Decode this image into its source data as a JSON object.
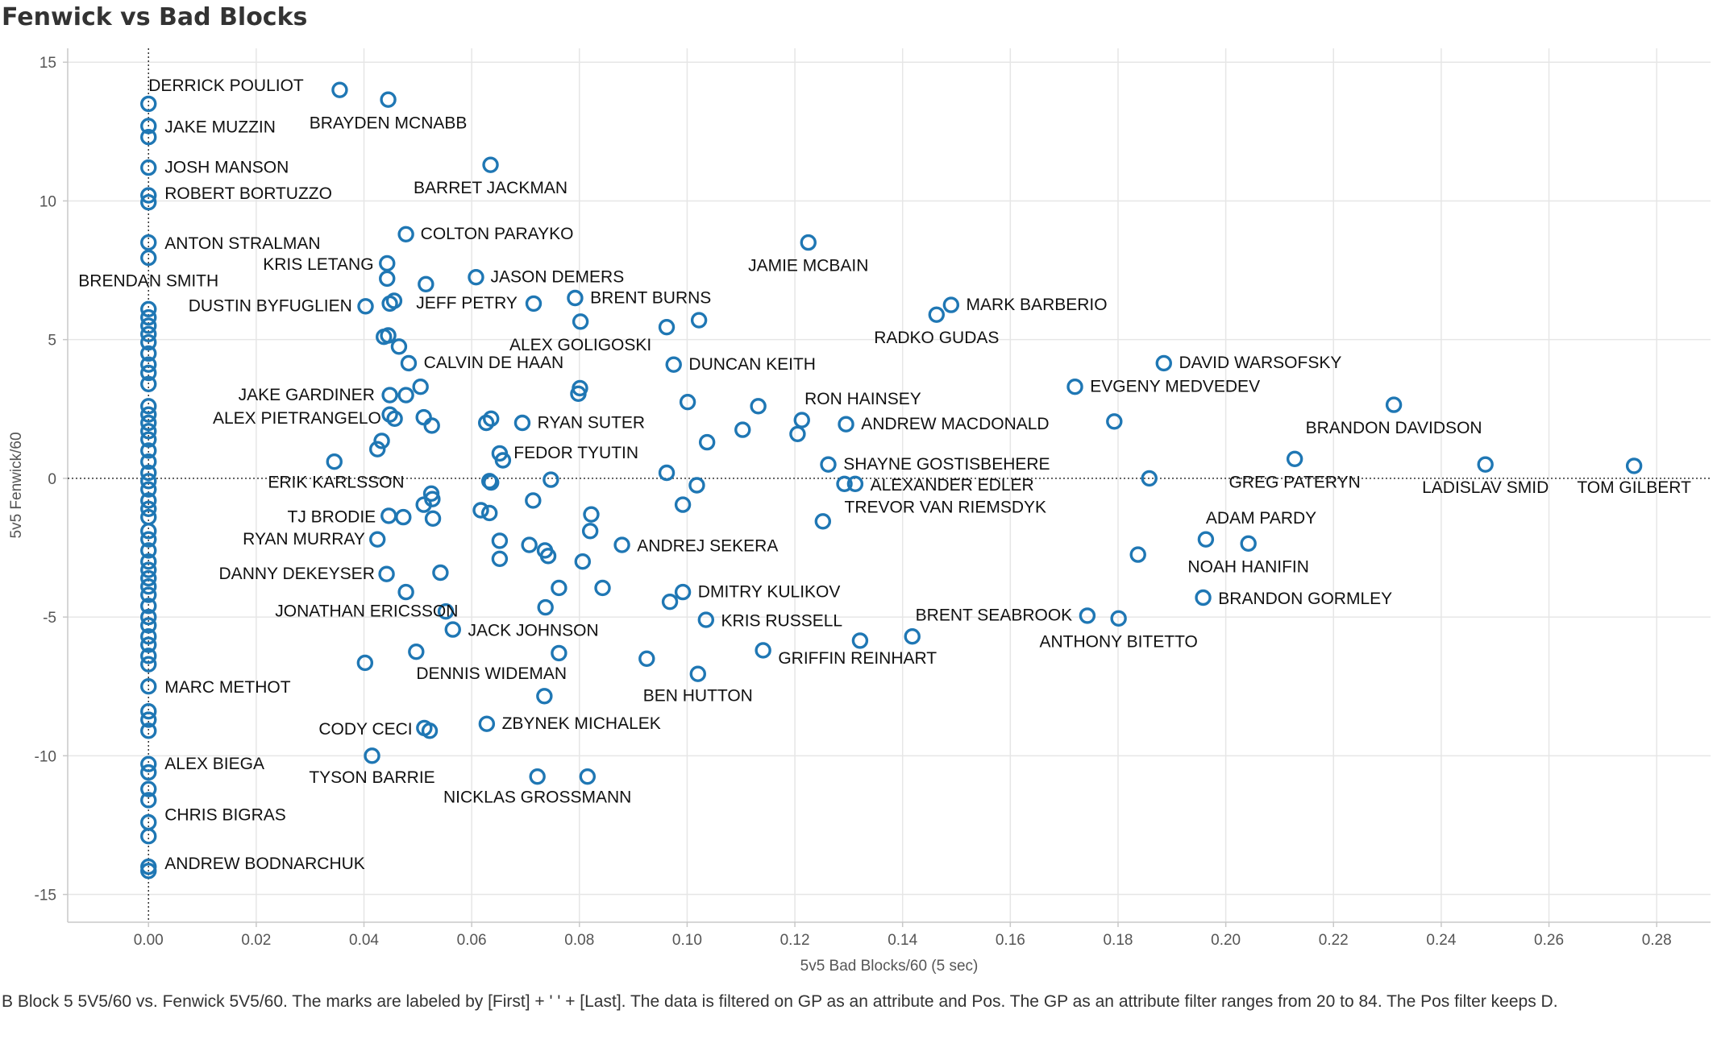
{
  "title": "Fenwick vs Bad Blocks",
  "caption": "B Block 5 5V5/60 vs. Fenwick 5V5/60.  The marks are labeled by [First] + ' ' + [Last]. The data is filtered on GP as an attribute and Pos. The GP as an attribute filter ranges from 20 to 84. The Pos filter keeps D.",
  "colors": {
    "mark": "#1f77b4",
    "grid": "#e6e6e6",
    "axis": "#c8c8c8",
    "zero_line": "#333333"
  },
  "chart_data": {
    "type": "scatter",
    "xlabel": "5v5 Bad Blocks/60 (5 sec)",
    "ylabel": "5v5 Fenwick/60",
    "xlim": [
      -0.015,
      0.29
    ],
    "ylim": [
      -16.0,
      15.5
    ],
    "x_ticks": [
      0.0,
      0.02,
      0.04,
      0.06,
      0.08,
      0.1,
      0.12,
      0.14,
      0.16,
      0.18,
      0.2,
      0.22,
      0.24,
      0.26,
      0.28
    ],
    "x_tick_labels": [
      "0.00",
      "0.02",
      "0.04",
      "0.06",
      "0.08",
      "0.10",
      "0.12",
      "0.14",
      "0.16",
      "0.18",
      "0.20",
      "0.22",
      "0.24",
      "0.26",
      "0.28"
    ],
    "y_ticks": [
      15,
      10,
      5,
      0,
      -5,
      -10,
      -15
    ],
    "y_tick_labels": [
      "15",
      "10",
      "5",
      "0",
      "-5",
      "-10",
      "-15"
    ],
    "grid": true,
    "zero_lines": true,
    "points": [
      {
        "x": 0.0,
        "y": 13.5
      },
      {
        "x": 0.0,
        "y": 12.7
      },
      {
        "x": 0.0,
        "y": 12.3
      },
      {
        "x": 0.0,
        "y": 11.2
      },
      {
        "x": 0.0,
        "y": 10.2
      },
      {
        "x": 0.0,
        "y": 9.95
      },
      {
        "x": 0.0,
        "y": 8.5
      },
      {
        "x": 0.0,
        "y": 7.95
      },
      {
        "x": 0.0,
        "y": 6.1
      },
      {
        "x": 0.0,
        "y": 5.8
      },
      {
        "x": 0.0,
        "y": 5.5
      },
      {
        "x": 0.0,
        "y": 5.2
      },
      {
        "x": 0.0,
        "y": 4.9
      },
      {
        "x": 0.0,
        "y": 4.5
      },
      {
        "x": 0.0,
        "y": 4.1
      },
      {
        "x": 0.0,
        "y": 3.8
      },
      {
        "x": 0.0,
        "y": 3.4
      },
      {
        "x": 0.0,
        "y": 2.6
      },
      {
        "x": 0.0,
        "y": 2.3
      },
      {
        "x": 0.0,
        "y": 2.0
      },
      {
        "x": 0.0,
        "y": 1.7
      },
      {
        "x": 0.0,
        "y": 1.4
      },
      {
        "x": 0.0,
        "y": 1.0
      },
      {
        "x": 0.0,
        "y": 0.6
      },
      {
        "x": 0.0,
        "y": 0.2
      },
      {
        "x": 0.0,
        "y": -0.1
      },
      {
        "x": 0.0,
        "y": -0.4
      },
      {
        "x": 0.0,
        "y": -0.8
      },
      {
        "x": 0.0,
        "y": -1.1
      },
      {
        "x": 0.0,
        "y": -1.4
      },
      {
        "x": 0.0,
        "y": -1.9
      },
      {
        "x": 0.0,
        "y": -2.2
      },
      {
        "x": 0.0,
        "y": -2.6
      },
      {
        "x": 0.0,
        "y": -3.0
      },
      {
        "x": 0.0,
        "y": -3.3
      },
      {
        "x": 0.0,
        "y": -3.6
      },
      {
        "x": 0.0,
        "y": -3.9
      },
      {
        "x": 0.0,
        "y": -4.2
      },
      {
        "x": 0.0,
        "y": -4.6
      },
      {
        "x": 0.0,
        "y": -5.0
      },
      {
        "x": 0.0,
        "y": -5.3
      },
      {
        "x": 0.0,
        "y": -5.7
      },
      {
        "x": 0.0,
        "y": -6.0
      },
      {
        "x": 0.0,
        "y": -6.4
      },
      {
        "x": 0.0,
        "y": -6.7
      },
      {
        "x": 0.0,
        "y": -7.5
      },
      {
        "x": 0.0,
        "y": -8.4
      },
      {
        "x": 0.0,
        "y": -8.7
      },
      {
        "x": 0.0,
        "y": -9.1
      },
      {
        "x": 0.0,
        "y": -10.3
      },
      {
        "x": 0.0,
        "y": -10.6
      },
      {
        "x": 0.0,
        "y": -11.2
      },
      {
        "x": 0.0,
        "y": -11.6
      },
      {
        "x": 0.0,
        "y": -12.4
      },
      {
        "x": 0.0,
        "y": -12.9
      },
      {
        "x": 0.0,
        "y": -14.0
      },
      {
        "x": 0.0,
        "y": -14.15
      },
      {
        "x": 0.0355,
        "y": 14.0
      },
      {
        "x": 0.0445,
        "y": 13.65
      },
      {
        "x": 0.0635,
        "y": 11.3
      },
      {
        "x": 0.0478,
        "y": 8.8
      },
      {
        "x": 0.1225,
        "y": 8.5
      },
      {
        "x": 0.0443,
        "y": 7.75
      },
      {
        "x": 0.0443,
        "y": 7.2
      },
      {
        "x": 0.0515,
        "y": 7.0
      },
      {
        "x": 0.0608,
        "y": 7.25
      },
      {
        "x": 0.0403,
        "y": 6.2
      },
      {
        "x": 0.0448,
        "y": 6.3
      },
      {
        "x": 0.0456,
        "y": 6.4
      },
      {
        "x": 0.0715,
        "y": 6.3
      },
      {
        "x": 0.0792,
        "y": 6.5
      },
      {
        "x": 0.149,
        "y": 6.25
      },
      {
        "x": 0.1463,
        "y": 5.9
      },
      {
        "x": 0.0802,
        "y": 5.65
      },
      {
        "x": 0.0962,
        "y": 5.45
      },
      {
        "x": 0.1022,
        "y": 5.7
      },
      {
        "x": 0.0437,
        "y": 5.1
      },
      {
        "x": 0.0445,
        "y": 5.15
      },
      {
        "x": 0.0465,
        "y": 4.75
      },
      {
        "x": 0.0483,
        "y": 4.15
      },
      {
        "x": 0.0975,
        "y": 4.1
      },
      {
        "x": 0.1885,
        "y": 4.15
      },
      {
        "x": 0.0505,
        "y": 3.3
      },
      {
        "x": 0.0448,
        "y": 3.0
      },
      {
        "x": 0.0478,
        "y": 3.0
      },
      {
        "x": 0.0801,
        "y": 3.25
      },
      {
        "x": 0.0798,
        "y": 3.05
      },
      {
        "x": 0.1001,
        "y": 2.75
      },
      {
        "x": 0.1132,
        "y": 2.6
      },
      {
        "x": 0.172,
        "y": 3.3
      },
      {
        "x": 0.2312,
        "y": 2.65
      },
      {
        "x": 0.0448,
        "y": 2.3
      },
      {
        "x": 0.0457,
        "y": 2.15
      },
      {
        "x": 0.0511,
        "y": 2.2
      },
      {
        "x": 0.0526,
        "y": 1.9
      },
      {
        "x": 0.0627,
        "y": 2.0
      },
      {
        "x": 0.0636,
        "y": 2.15
      },
      {
        "x": 0.0694,
        "y": 2.0
      },
      {
        "x": 0.1103,
        "y": 1.75
      },
      {
        "x": 0.1213,
        "y": 2.1
      },
      {
        "x": 0.1205,
        "y": 1.6
      },
      {
        "x": 0.1295,
        "y": 1.95
      },
      {
        "x": 0.1793,
        "y": 2.05
      },
      {
        "x": 0.0425,
        "y": 1.05
      },
      {
        "x": 0.0433,
        "y": 1.35
      },
      {
        "x": 0.0652,
        "y": 0.9
      },
      {
        "x": 0.0658,
        "y": 0.65
      },
      {
        "x": 0.1037,
        "y": 1.3
      },
      {
        "x": 0.0345,
        "y": 0.6
      },
      {
        "x": 0.1262,
        "y": 0.5
      },
      {
        "x": 0.2128,
        "y": 0.7
      },
      {
        "x": 0.2482,
        "y": 0.5
      },
      {
        "x": 0.2758,
        "y": 0.45
      },
      {
        "x": 0.0633,
        "y": -0.1
      },
      {
        "x": 0.0636,
        "y": -0.15
      },
      {
        "x": 0.0747,
        "y": -0.05
      },
      {
        "x": 0.0962,
        "y": 0.2
      },
      {
        "x": 0.1018,
        "y": -0.25
      },
      {
        "x": 0.1292,
        "y": -0.2
      },
      {
        "x": 0.1312,
        "y": -0.2
      },
      {
        "x": 0.1858,
        "y": 0.0
      },
      {
        "x": 0.0525,
        "y": -0.55
      },
      {
        "x": 0.0527,
        "y": -0.75
      },
      {
        "x": 0.0511,
        "y": -0.95
      },
      {
        "x": 0.0446,
        "y": -1.35
      },
      {
        "x": 0.0473,
        "y": -1.4
      },
      {
        "x": 0.0528,
        "y": -1.45
      },
      {
        "x": 0.0617,
        "y": -1.15
      },
      {
        "x": 0.0633,
        "y": -1.25
      },
      {
        "x": 0.0714,
        "y": -0.8
      },
      {
        "x": 0.0822,
        "y": -1.3
      },
      {
        "x": 0.0992,
        "y": -0.95
      },
      {
        "x": 0.1252,
        "y": -1.55
      },
      {
        "x": 0.082,
        "y": -1.9
      },
      {
        "x": 0.0425,
        "y": -2.2
      },
      {
        "x": 0.0652,
        "y": -2.25
      },
      {
        "x": 0.0707,
        "y": -2.4
      },
      {
        "x": 0.0736,
        "y": -2.6
      },
      {
        "x": 0.0742,
        "y": -2.8
      },
      {
        "x": 0.0652,
        "y": -2.9
      },
      {
        "x": 0.0806,
        "y": -3.0
      },
      {
        "x": 0.0879,
        "y": -2.4
      },
      {
        "x": 0.1837,
        "y": -2.75
      },
      {
        "x": 0.1963,
        "y": -2.2
      },
      {
        "x": 0.2042,
        "y": -2.35
      },
      {
        "x": 0.0442,
        "y": -3.45
      },
      {
        "x": 0.0542,
        "y": -3.4
      },
      {
        "x": 0.0478,
        "y": -4.1
      },
      {
        "x": 0.0762,
        "y": -3.95
      },
      {
        "x": 0.0843,
        "y": -3.95
      },
      {
        "x": 0.0992,
        "y": -4.1
      },
      {
        "x": 0.0968,
        "y": -4.45
      },
      {
        "x": 0.1958,
        "y": -4.3
      },
      {
        "x": 0.0552,
        "y": -4.8
      },
      {
        "x": 0.0737,
        "y": -4.65
      },
      {
        "x": 0.1035,
        "y": -5.1
      },
      {
        "x": 0.0565,
        "y": -5.45
      },
      {
        "x": 0.1743,
        "y": -4.95
      },
      {
        "x": 0.1801,
        "y": -5.05
      },
      {
        "x": 0.1321,
        "y": -5.85
      },
      {
        "x": 0.1418,
        "y": -5.7
      },
      {
        "x": 0.0497,
        "y": -6.25
      },
      {
        "x": 0.0762,
        "y": -6.3
      },
      {
        "x": 0.0402,
        "y": -6.65
      },
      {
        "x": 0.0925,
        "y": -6.5
      },
      {
        "x": 0.1141,
        "y": -6.2
      },
      {
        "x": 0.102,
        "y": -7.05
      },
      {
        "x": 0.0735,
        "y": -7.85
      },
      {
        "x": 0.0628,
        "y": -8.85
      },
      {
        "x": 0.0512,
        "y": -9.0
      },
      {
        "x": 0.0522,
        "y": -9.1
      },
      {
        "x": 0.0415,
        "y": -10.0
      },
      {
        "x": 0.0722,
        "y": -10.75
      },
      {
        "x": 0.0815,
        "y": -10.75
      }
    ],
    "annotations": [
      {
        "text": "DERRICK POULIOT",
        "x": 0.0,
        "y": 14.2,
        "align": "start"
      },
      {
        "text": "BRAYDEN MCNABB",
        "x": 0.0445,
        "y": 12.85,
        "align": "middle"
      },
      {
        "text": "JAKE MUZZIN",
        "x": 0.003,
        "y": 12.7,
        "align": "start"
      },
      {
        "text": "JOSH MANSON",
        "x": 0.003,
        "y": 11.25,
        "align": "start"
      },
      {
        "text": "BARRET JACKMAN",
        "x": 0.0635,
        "y": 10.5,
        "align": "middle"
      },
      {
        "text": "ROBERT BORTUZZO",
        "x": 0.003,
        "y": 10.3,
        "align": "start"
      },
      {
        "text": "COLTON PARAYKO",
        "x": 0.0505,
        "y": 8.85,
        "align": "start"
      },
      {
        "text": "ANTON STRALMAN",
        "x": 0.003,
        "y": 8.5,
        "align": "start"
      },
      {
        "text": "JAMIE MCBAIN",
        "x": 0.1225,
        "y": 7.7,
        "align": "middle"
      },
      {
        "text": "KRIS LETANG",
        "x": 0.0418,
        "y": 7.75,
        "align": "end"
      },
      {
        "text": "BRENDAN SMITH",
        "x": 0.0,
        "y": 7.15,
        "align": "middle"
      },
      {
        "text": "JASON DEMERS",
        "x": 0.0635,
        "y": 7.3,
        "align": "start"
      },
      {
        "text": "MARK BARBERIO",
        "x": 0.1518,
        "y": 6.3,
        "align": "start"
      },
      {
        "text": "BRENT BURNS",
        "x": 0.082,
        "y": 6.55,
        "align": "start"
      },
      {
        "text": "JEFF PETRY",
        "x": 0.0685,
        "y": 6.35,
        "align": "end"
      },
      {
        "text": "DUSTIN BYFUGLIEN",
        "x": 0.0378,
        "y": 6.25,
        "align": "end"
      },
      {
        "text": "RADKO GUDAS",
        "x": 0.1463,
        "y": 5.1,
        "align": "middle"
      },
      {
        "text": "ALEX GOLIGOSKI",
        "x": 0.0802,
        "y": 4.85,
        "align": "middle"
      },
      {
        "text": "DAVID WARSOFSKY",
        "x": 0.1913,
        "y": 4.2,
        "align": "start"
      },
      {
        "text": "CALVIN DE HAAN",
        "x": 0.0511,
        "y": 4.2,
        "align": "start"
      },
      {
        "text": "DUNCAN KEITH",
        "x": 0.1003,
        "y": 4.15,
        "align": "start"
      },
      {
        "text": "EVGENY MEDVEDEV",
        "x": 0.1748,
        "y": 3.35,
        "align": "start"
      },
      {
        "text": "RON HAINSEY",
        "x": 0.1218,
        "y": 2.9,
        "align": "start"
      },
      {
        "text": "JAKE GARDINER",
        "x": 0.042,
        "y": 3.05,
        "align": "end"
      },
      {
        "text": "BRANDON DAVIDSON",
        "x": 0.2312,
        "y": 1.85,
        "align": "middle"
      },
      {
        "text": "ALEX PIETRANGELO",
        "x": 0.0432,
        "y": 2.2,
        "align": "end"
      },
      {
        "text": "RYAN SUTER",
        "x": 0.0722,
        "y": 2.05,
        "align": "start"
      },
      {
        "text": "ANDREW MACDONALD",
        "x": 0.1323,
        "y": 2.0,
        "align": "start"
      },
      {
        "text": "FEDOR TYUTIN",
        "x": 0.0678,
        "y": 0.95,
        "align": "start"
      },
      {
        "text": "SHAYNE GOSTISBEHERE",
        "x": 0.129,
        "y": 0.55,
        "align": "start"
      },
      {
        "text": "GREG PATERYN",
        "x": 0.2128,
        "y": -0.1,
        "align": "middle"
      },
      {
        "text": "LADISLAV SMID",
        "x": 0.2482,
        "y": -0.3,
        "align": "middle"
      },
      {
        "text": "TOM GILBERT",
        "x": 0.2758,
        "y": -0.3,
        "align": "middle"
      },
      {
        "text": "ERIK KARLSSON",
        "x": 0.0475,
        "y": -0.1,
        "align": "end"
      },
      {
        "text": "ALEXANDER EDLER",
        "x": 0.134,
        "y": -0.2,
        "align": "start"
      },
      {
        "text": "TREVOR VAN RIEMSDYK",
        "x": 0.1292,
        "y": -1.0,
        "align": "start"
      },
      {
        "text": "TJ BRODIE",
        "x": 0.0422,
        "y": -1.35,
        "align": "end"
      },
      {
        "text": "ADAM PARDY",
        "x": 0.1963,
        "y": -1.4,
        "align": "start"
      },
      {
        "text": "RYAN MURRAY",
        "x": 0.0402,
        "y": -2.15,
        "align": "end"
      },
      {
        "text": "ANDREJ SEKERA",
        "x": 0.0907,
        "y": -2.4,
        "align": "start"
      },
      {
        "text": "NOAH HANIFIN",
        "x": 0.2042,
        "y": -3.15,
        "align": "middle"
      },
      {
        "text": "DANNY DEKEYSER",
        "x": 0.042,
        "y": -3.4,
        "align": "end"
      },
      {
        "text": "DMITRY KULIKOV",
        "x": 0.102,
        "y": -4.05,
        "align": "start"
      },
      {
        "text": "BRANDON GORMLEY",
        "x": 0.1986,
        "y": -4.3,
        "align": "start"
      },
      {
        "text": "JONATHAN ERICSSON",
        "x": 0.0235,
        "y": -4.75,
        "align": "start"
      },
      {
        "text": "BRENT SEABROOK",
        "x": 0.1715,
        "y": -4.9,
        "align": "end"
      },
      {
        "text": "KRIS RUSSELL",
        "x": 0.1063,
        "y": -5.1,
        "align": "start"
      },
      {
        "text": "JACK JOHNSON",
        "x": 0.0593,
        "y": -5.45,
        "align": "start"
      },
      {
        "text": "ANTHONY BITETTO",
        "x": 0.1801,
        "y": -5.85,
        "align": "middle"
      },
      {
        "text": "GRIFFIN REINHART",
        "x": 0.1169,
        "y": -6.45,
        "align": "start"
      },
      {
        "text": "DENNIS WIDEMAN",
        "x": 0.0497,
        "y": -7.0,
        "align": "start"
      },
      {
        "text": "MARC METHOT",
        "x": 0.003,
        "y": -7.5,
        "align": "start"
      },
      {
        "text": "BEN HUTTON",
        "x": 0.102,
        "y": -7.8,
        "align": "middle"
      },
      {
        "text": "ZBYNEK MICHALEK",
        "x": 0.0656,
        "y": -8.8,
        "align": "start"
      },
      {
        "text": "CODY CECI",
        "x": 0.049,
        "y": -9.0,
        "align": "end"
      },
      {
        "text": "ALEX BIEGA",
        "x": 0.003,
        "y": -10.25,
        "align": "start"
      },
      {
        "text": "TYSON BARRIE",
        "x": 0.0415,
        "y": -10.75,
        "align": "middle"
      },
      {
        "text": "NICKLAS GROSSMANN",
        "x": 0.0722,
        "y": -11.45,
        "align": "middle"
      },
      {
        "text": "CHRIS BIGRAS",
        "x": 0.003,
        "y": -12.1,
        "align": "start"
      },
      {
        "text": "ANDREW BODNARCHUK",
        "x": 0.003,
        "y": -13.85,
        "align": "start"
      }
    ]
  }
}
